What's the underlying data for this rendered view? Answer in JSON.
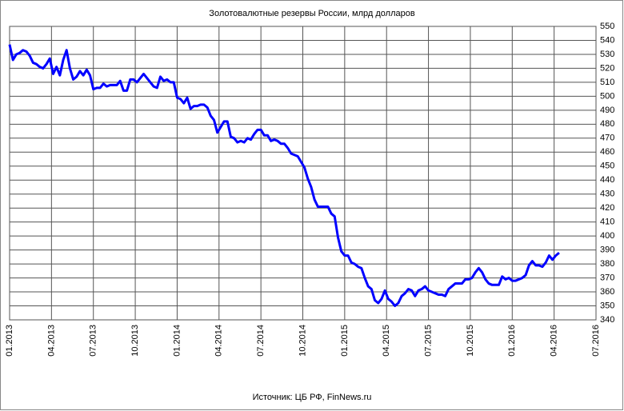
{
  "chart_data": {
    "type": "line",
    "title": "Золотовалютные резервы России, млрд долларов",
    "source": "Источник: ЦБ РФ, FinNews.ru",
    "xlim": [
      2013,
      2016.5
    ],
    "xticks": [
      {
        "value": 2013,
        "label": "01.2013"
      },
      {
        "value": 2013.25,
        "label": "04.2013"
      },
      {
        "value": 2013.5,
        "label": "07.2013"
      },
      {
        "value": 2013.75,
        "label": "10.2013"
      },
      {
        "value": 2014,
        "label": "01.2014"
      },
      {
        "value": 2014.25,
        "label": "04.2014"
      },
      {
        "value": 2014.5,
        "label": "07.2014"
      },
      {
        "value": 2014.75,
        "label": "10.2014"
      },
      {
        "value": 2015,
        "label": "01.2015"
      },
      {
        "value": 2015.25,
        "label": "04.2015"
      },
      {
        "value": 2015.5,
        "label": "07.2015"
      },
      {
        "value": 2015.75,
        "label": "10.2015"
      },
      {
        "value": 2016,
        "label": "01.2016"
      },
      {
        "value": 2016.25,
        "label": "04.2016"
      },
      {
        "value": 2016.5,
        "label": "07.2016"
      }
    ],
    "ylim": [
      340,
      550
    ],
    "yticks": [
      340,
      350,
      360,
      370,
      380,
      390,
      400,
      410,
      420,
      430,
      440,
      450,
      460,
      470,
      480,
      490,
      500,
      510,
      520,
      530,
      540,
      550
    ],
    "grid": true,
    "color": "#0000ff",
    "x": [
      2013,
      2013.02,
      2013.04,
      2013.06,
      2013.08,
      2013.1,
      2013.12,
      2013.14,
      2013.16,
      2013.18,
      2013.2,
      2013.22,
      2013.24,
      2013.26,
      2013.28,
      2013.3,
      2013.32,
      2013.34,
      2013.36,
      2013.38,
      2013.4,
      2013.42,
      2013.44,
      2013.46,
      2013.48,
      2013.5,
      2013.52,
      2013.54,
      2013.56,
      2013.58,
      2013.6,
      2013.62,
      2013.64,
      2013.66,
      2013.68,
      2013.7,
      2013.72,
      2013.74,
      2013.76,
      2013.78,
      2013.8,
      2013.82,
      2013.84,
      2013.86,
      2013.88,
      2013.9,
      2013.92,
      2013.94,
      2013.96,
      2013.98,
      2014,
      2014.02,
      2014.04,
      2014.06,
      2014.08,
      2014.1,
      2014.12,
      2014.14,
      2014.16,
      2014.18,
      2014.2,
      2014.22,
      2014.24,
      2014.26,
      2014.28,
      2014.3,
      2014.32,
      2014.34,
      2014.36,
      2014.38,
      2014.4,
      2014.42,
      2014.44,
      2014.46,
      2014.48,
      2014.5,
      2014.52,
      2014.54,
      2014.56,
      2014.58,
      2014.6,
      2014.62,
      2014.64,
      2014.66,
      2014.68,
      2014.7,
      2014.72,
      2014.74,
      2014.76,
      2014.78,
      2014.8,
      2014.82,
      2014.84,
      2014.86,
      2014.88,
      2014.9,
      2014.92,
      2014.94,
      2014.96,
      2014.98,
      2015,
      2015.02,
      2015.04,
      2015.06,
      2015.08,
      2015.1,
      2015.12,
      2015.14,
      2015.16,
      2015.18,
      2015.2,
      2015.22,
      2015.24,
      2015.26,
      2015.28,
      2015.3,
      2015.32,
      2015.34,
      2015.36,
      2015.38,
      2015.4,
      2015.42,
      2015.44,
      2015.46,
      2015.48,
      2015.5,
      2015.52,
      2015.54,
      2015.56,
      2015.58,
      2015.6,
      2015.62,
      2015.64,
      2015.66,
      2015.68,
      2015.7,
      2015.72,
      2015.74,
      2015.76,
      2015.78,
      2015.8,
      2015.82,
      2015.84,
      2015.86,
      2015.88,
      2015.9,
      2015.92,
      2015.94,
      2015.96,
      2015.98,
      2016,
      2016.02,
      2016.04,
      2016.06,
      2016.08,
      2016.1,
      2016.12,
      2016.14,
      2016.16,
      2016.18,
      2016.2,
      2016.22,
      2016.24,
      2016.26,
      2016.28
    ],
    "values": [
      537,
      526,
      530,
      531,
      533,
      532,
      529,
      524,
      523,
      521,
      520,
      523,
      527,
      516,
      521,
      515,
      526,
      533,
      520,
      512,
      514,
      518,
      515,
      519,
      515,
      505,
      506,
      506,
      509,
      507,
      508,
      508,
      508,
      511,
      504,
      504,
      512,
      512,
      510,
      513,
      516,
      513,
      510,
      507,
      506,
      514,
      511,
      512,
      510,
      510,
      499,
      498,
      495,
      499,
      491,
      493,
      493,
      494,
      494,
      492,
      486,
      483,
      474,
      478,
      482,
      482,
      471,
      470,
      467,
      468,
      467,
      470,
      469,
      473,
      476,
      476,
      472,
      472,
      468,
      469,
      468,
      466,
      466,
      463,
      459,
      458,
      457,
      453,
      449,
      441,
      435,
      426,
      421,
      421,
      421,
      421,
      416,
      414,
      399,
      389,
      386,
      386,
      381,
      380,
      378,
      377,
      370,
      364,
      362,
      354,
      352,
      355,
      361,
      355,
      353,
      350,
      352,
      357,
      359,
      362,
      361,
      357,
      361,
      362,
      364,
      361,
      360,
      359,
      358,
      358,
      357,
      362,
      364,
      366,
      366,
      366,
      369,
      369,
      370,
      374,
      377,
      374,
      369,
      366,
      365,
      365,
      365,
      371,
      369,
      370,
      368,
      368,
      369,
      370,
      372,
      379,
      382,
      379,
      379,
      378,
      381,
      386,
      383,
      386,
      388
    ]
  }
}
